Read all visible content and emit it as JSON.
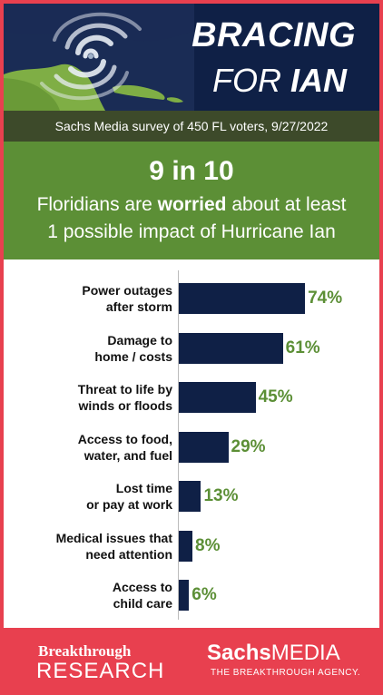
{
  "header": {
    "title_line1": "BRACING",
    "title_line2_prefix": "FOR",
    "title_line2_bold": "IAN"
  },
  "survey": {
    "text": "Sachs Media survey of 450 FL voters, 9/27/2022"
  },
  "summary": {
    "big_stat": "9 in 10",
    "line1_before": "Floridians are ",
    "line1_bold": "worried",
    "line1_after": " about at least",
    "line2": "1 possible impact of Hurricane Ian"
  },
  "chart_data": {
    "type": "bar",
    "orientation": "horizontal",
    "categories": [
      [
        "Power outages",
        "after storm"
      ],
      [
        "Damage to",
        "home / costs"
      ],
      [
        "Threat to life by",
        "winds or floods"
      ],
      [
        "Access to food,",
        "water, and fuel"
      ],
      [
        "Lost time",
        "or pay at work"
      ],
      [
        "Medical issues that",
        "need attention"
      ],
      [
        "Access to",
        "child care"
      ]
    ],
    "values": [
      74,
      61,
      45,
      29,
      13,
      8,
      6
    ],
    "value_labels": [
      "74%",
      "61%",
      "45%",
      "29%",
      "13%",
      "8%",
      "6%"
    ],
    "xlim": [
      0,
      100
    ],
    "bar_color": "#0f2046",
    "label_color": "#5c8f36"
  },
  "footer": {
    "breakthrough_line1": "Breakthrough",
    "breakthrough_line2": "RESEARCH",
    "sachs_bold": "Sachs",
    "sachs_regular": "MEDIA",
    "tagline": "THE BREAKTHROUGH AGENCY."
  },
  "colors": {
    "navy": "#0f2046",
    "green": "#5c8f36",
    "dark_olive": "#3d4a2a",
    "red": "#e8404f"
  }
}
